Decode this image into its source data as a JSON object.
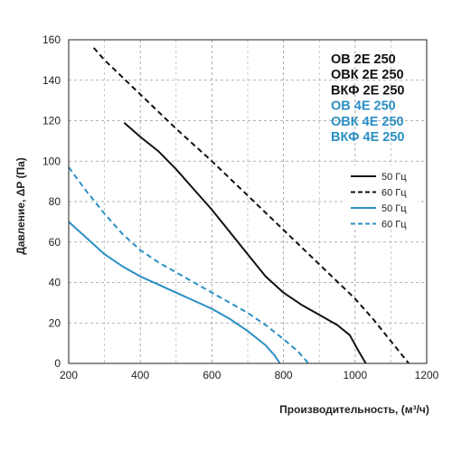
{
  "chart_data": {
    "type": "line",
    "title": "",
    "xlabel": "Производительность, (м³/ч)",
    "ylabel": "Давление, ΔP (Па)",
    "xlim": [
      200,
      1200
    ],
    "ylim": [
      0,
      160
    ],
    "xticks": [
      200,
      400,
      600,
      800,
      1000,
      1200
    ],
    "yticks": [
      0,
      20,
      40,
      60,
      80,
      100,
      120,
      140,
      160
    ],
    "grid": true,
    "grid_style": "dashed",
    "legend_position": "right",
    "model_groups": [
      {
        "color": "#111111",
        "labels": [
          "ОВ 2Е 250",
          "ОВК 2Е 250",
          "ВКФ 2Е 250"
        ]
      },
      {
        "color": "#2a8fc4",
        "labels": [
          "ОВ 4Е 250",
          "ОВК 4Е 250",
          "ВКФ 4Е 250"
        ]
      }
    ],
    "series": [
      {
        "name": "50 Гц",
        "color": "#111111",
        "dash": "solid",
        "points": [
          [
            355,
            119
          ],
          [
            400,
            112
          ],
          [
            450,
            105
          ],
          [
            500,
            96
          ],
          [
            550,
            86
          ],
          [
            600,
            76
          ],
          [
            650,
            65
          ],
          [
            700,
            54
          ],
          [
            750,
            43
          ],
          [
            800,
            35
          ],
          [
            850,
            29
          ],
          [
            900,
            24
          ],
          [
            950,
            19
          ],
          [
            985,
            14
          ],
          [
            1010,
            6
          ],
          [
            1030,
            0
          ]
        ]
      },
      {
        "name": "60 Гц",
        "color": "#111111",
        "dash": "dashed",
        "points": [
          [
            270,
            156
          ],
          [
            300,
            150
          ],
          [
            400,
            133
          ],
          [
            500,
            116
          ],
          [
            600,
            100
          ],
          [
            700,
            83
          ],
          [
            800,
            66
          ],
          [
            900,
            49
          ],
          [
            1000,
            32
          ],
          [
            1050,
            22
          ],
          [
            1100,
            11
          ],
          [
            1150,
            0
          ]
        ]
      },
      {
        "name": "50 Гц",
        "color": "#2a8fc4",
        "dash": "solid",
        "points": [
          [
            200,
            70
          ],
          [
            250,
            62
          ],
          [
            300,
            54
          ],
          [
            350,
            48
          ],
          [
            400,
            43
          ],
          [
            450,
            39
          ],
          [
            500,
            35
          ],
          [
            550,
            31
          ],
          [
            600,
            27
          ],
          [
            650,
            22
          ],
          [
            700,
            16
          ],
          [
            750,
            9
          ],
          [
            775,
            4
          ],
          [
            790,
            0
          ]
        ]
      },
      {
        "name": "60 Гц",
        "color": "#2a8fc4",
        "dash": "dashed",
        "points": [
          [
            200,
            97
          ],
          [
            250,
            85
          ],
          [
            300,
            74
          ],
          [
            350,
            64
          ],
          [
            400,
            56
          ],
          [
            450,
            50
          ],
          [
            500,
            45
          ],
          [
            550,
            40
          ],
          [
            600,
            35
          ],
          [
            650,
            30
          ],
          [
            700,
            25
          ],
          [
            750,
            19
          ],
          [
            800,
            12
          ],
          [
            840,
            6
          ],
          [
            870,
            0
          ]
        ]
      }
    ]
  }
}
